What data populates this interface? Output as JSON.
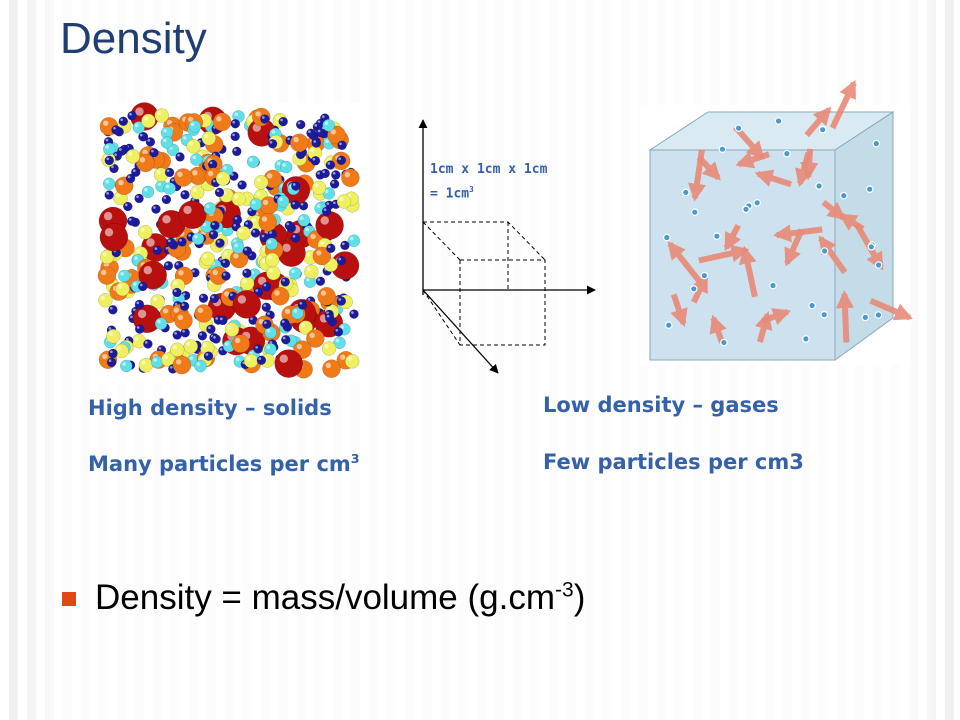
{
  "title": "Density",
  "diagram": {
    "line1": "1cm x 1cm x 1cm",
    "line2": "= 1cm",
    "line2_sup": "3"
  },
  "left": {
    "line1": "High density – solids",
    "line2": "Many particles per cm",
    "line2_sup": "3"
  },
  "right": {
    "line1": "Low density – gases",
    "line2": "Few particles per cm3"
  },
  "bullet": {
    "text": "Density = mass/volume (g.cm",
    "sup": "-3",
    "tail": ")"
  }
}
